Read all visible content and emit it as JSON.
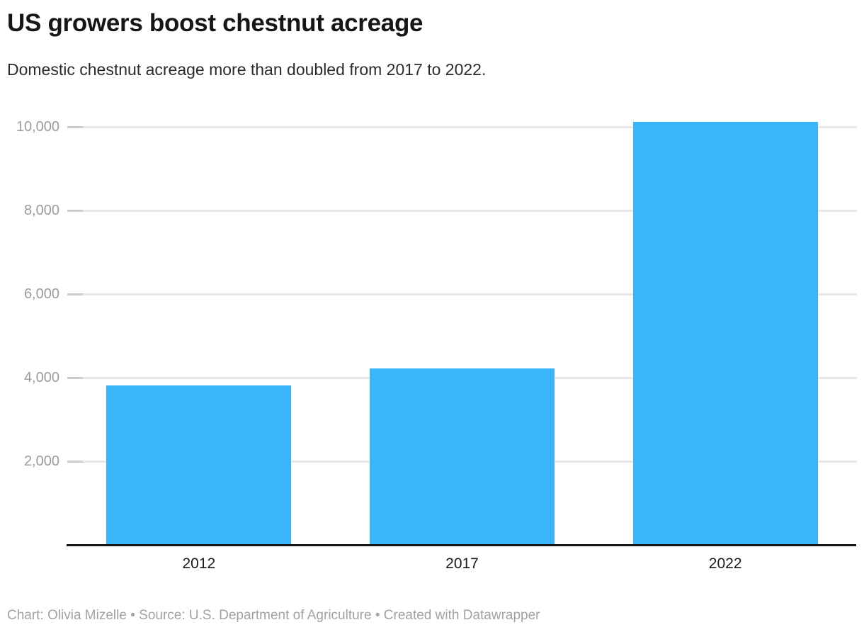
{
  "header": {
    "title": "US growers boost chestnut acreage",
    "subtitle": "Domestic chestnut acreage more than doubled from 2017 to 2022."
  },
  "footer": {
    "text": "Chart: Olivia Mizelle • Source: U.S. Department of Agriculture • Created with Datawrapper"
  },
  "chart_data": {
    "type": "bar",
    "categories": [
      "2012",
      "2017",
      "2022"
    ],
    "values": [
      3800,
      4200,
      10100
    ],
    "title": "US growers boost chestnut acreage",
    "subtitle": "Domestic chestnut acreage more than doubled from 2017 to 2022.",
    "xlabel": "",
    "ylabel": "",
    "ylim": [
      0,
      10500
    ],
    "yticks": [
      2000,
      4000,
      6000,
      8000,
      10000
    ],
    "ytick_labels": [
      "2,000",
      "4,000",
      "6,000",
      "8,000",
      "10,000"
    ],
    "grid": true,
    "legend": "none",
    "colors": {
      "bar": "#3ab6f8",
      "axis_line": "#141414",
      "gridline": "#e7e7e7",
      "gridline_tick": "#cccccc",
      "y_tick_label": "#9c9c9c",
      "x_tick_label": "#1a1a1a",
      "title": "#161616",
      "subtitle": "#2b2b2b",
      "footer": "#a2a2a2"
    }
  }
}
